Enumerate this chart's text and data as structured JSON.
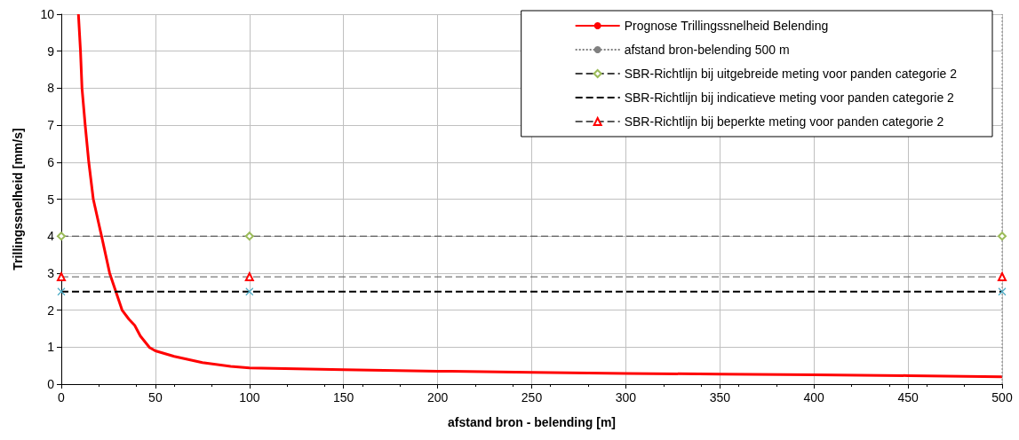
{
  "chart_data": {
    "type": "line",
    "xlabel": "afstand bron - belending [m]",
    "ylabel": "Trillingssnelheid [mm/s]",
    "xlim": [
      0,
      500
    ],
    "xticks": [
      0,
      50,
      100,
      150,
      200,
      250,
      300,
      350,
      400,
      450,
      500
    ],
    "ylim": [
      0,
      10
    ],
    "yticks": [
      0,
      1,
      2,
      3,
      4,
      5,
      6,
      7,
      8,
      9,
      10
    ],
    "grid": true,
    "legend": "top right",
    "series": [
      {
        "name": "Prognose Trillingssnelheid Belending",
        "color": "#ff0000",
        "marker": "none",
        "line_style": "solid",
        "x": [
          9.1,
          10.2,
          11,
          12.7,
          14.6,
          17,
          21.4,
          25.7,
          29,
          32.3,
          36,
          39,
          42,
          46.9,
          50,
          60,
          75,
          90,
          100,
          150,
          200,
          250,
          300,
          350,
          400,
          450,
          500
        ],
        "values": [
          10,
          9,
          8,
          7,
          6,
          5,
          4,
          3,
          2.5,
          2,
          1.75,
          1.59,
          1.3,
          0.99,
          0.9,
          0.75,
          0.58,
          0.48,
          0.44,
          0.39,
          0.35,
          0.32,
          0.29,
          0.27,
          0.25,
          0.23,
          0.2
        ]
      },
      {
        "name": "afstand bron-belending 500 m",
        "color": "#808080",
        "marker": "none",
        "line_style": "dotted",
        "x": [
          500,
          500
        ],
        "values": [
          0,
          10
        ]
      },
      {
        "name": "SBR-Richtlijn bij uitgebreide meting voor panden categorie 2",
        "color": "#404040",
        "marker": "diamond",
        "line_style": "dashed",
        "colors": [
          "#9bbb59",
          "#9bbb59",
          "#9bbb59"
        ],
        "x": [
          0,
          100,
          500
        ],
        "values": [
          4,
          4,
          4
        ]
      },
      {
        "name": "SBR-Richtlijn bij indicatieve meting voor panden categorie 2",
        "color": "#000000",
        "marker": "cross",
        "line_style": "dashed",
        "colors": [
          "#4bacc6",
          "#4bacc6",
          "#4bacc6"
        ],
        "x": [
          0,
          100,
          500
        ],
        "values": [
          2.5,
          2.5,
          2.5
        ]
      },
      {
        "name": "SBR-Richtlijn bij beperkte meting voor panden categorie 2",
        "color": "#595959",
        "marker": "triangle",
        "line_style": "dashed",
        "colors": [
          "#ff0000",
          "#ff0000",
          "#ff0000"
        ],
        "x": [
          0,
          100,
          500
        ],
        "values": [
          2.9,
          2.9,
          2.9
        ]
      }
    ]
  }
}
